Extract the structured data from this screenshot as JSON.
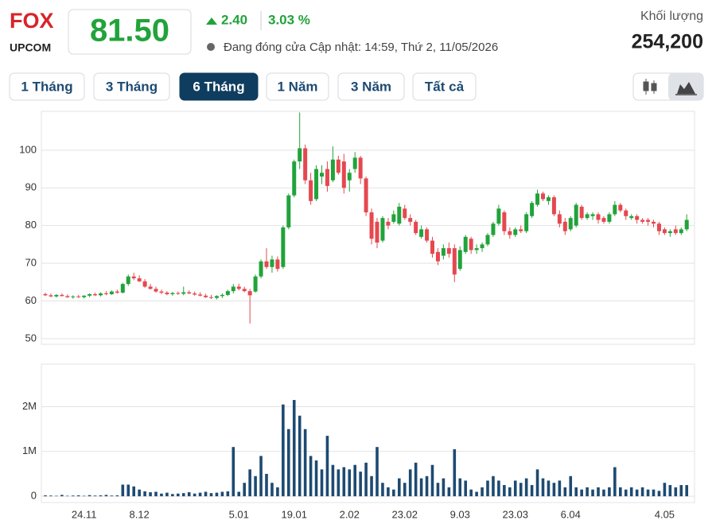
{
  "header": {
    "symbol": "FOX",
    "exchange": "UPCOM",
    "price": "81.50",
    "change": "2.40",
    "change_percent": "3.03 %",
    "status": "Đang đóng cửa",
    "updated": "Cập nhật: 14:59, Thứ 2, 11/05/2026",
    "volume_label": "Khối lượng",
    "volume": "254,200"
  },
  "tabs": [
    "1 Tháng",
    "3 Tháng",
    "6 Tháng",
    "1 Năm",
    "3 Năm",
    "Tất cả"
  ],
  "chart_data": [
    {
      "type": "candlestick",
      "up_color": "#21a33a",
      "down_color": "#e5484f",
      "grid": true,
      "ylim": [
        48.5,
        110.3
      ],
      "yticks": [
        50,
        60,
        70,
        80,
        90,
        100
      ],
      "open": [
        61.8,
        61.5,
        61.2,
        61.6,
        61.3,
        61,
        61.2,
        61,
        61.4,
        61.8,
        61.5,
        62,
        61.8,
        62.5,
        62.2,
        64.5,
        66.5,
        66,
        65.2,
        63.8,
        63.2,
        62.5,
        62.2,
        61.8,
        62.1,
        61.9,
        62.3,
        62,
        61.7,
        61.4,
        61,
        60.8,
        61.3,
        61.6,
        62.6,
        63.8,
        63.2,
        62.6,
        62.5,
        66.5,
        70.5,
        69,
        71,
        69,
        79.5,
        88,
        97,
        100.5,
        92,
        87,
        93,
        95,
        92,
        97.5,
        97,
        92,
        95,
        98,
        92.5,
        83.5,
        81,
        76,
        81,
        81,
        80.5,
        84.5,
        82,
        81,
        77,
        79,
        76,
        73,
        72,
        74,
        74,
        68.5,
        73,
        76.5,
        73.5,
        74,
        75,
        77.5,
        80.5,
        83.5,
        78.5,
        77.5,
        79,
        78.5,
        82.5,
        85.5,
        88.5,
        86.5,
        87.5,
        83,
        81,
        79,
        80,
        85,
        82,
        82.5,
        83,
        82,
        81,
        83,
        85.5,
        84,
        82,
        82.5,
        81.5,
        81.5,
        81,
        80.5,
        79,
        78,
        79,
        78,
        79
      ],
      "high": [
        62.2,
        62,
        61.8,
        62,
        61.7,
        61.5,
        61.6,
        61.5,
        62,
        62.2,
        62.3,
        62.6,
        62.8,
        63,
        64.8,
        67,
        67.5,
        66.8,
        65.8,
        64.5,
        63.8,
        63,
        62.6,
        62.4,
        62.5,
        63.8,
        62.8,
        62.5,
        62.3,
        61.9,
        61.6,
        61.5,
        62,
        63,
        64.5,
        64.6,
        63.8,
        63.2,
        67,
        71,
        74,
        72,
        71.8,
        80,
        88.5,
        97.5,
        110,
        101.5,
        94,
        96,
        96,
        97,
        101,
        98.5,
        99,
        95,
        99.5,
        98.5,
        93,
        84.5,
        82,
        82.5,
        82,
        84,
        86,
        85.5,
        83,
        81.5,
        80,
        79.5,
        77,
        74,
        75,
        75.5,
        75,
        74.5,
        77.5,
        77,
        75,
        75.5,
        78,
        81,
        85.5,
        84,
        79.5,
        79.5,
        80,
        83.5,
        86.5,
        89.5,
        89,
        88,
        88,
        84,
        82,
        82.5,
        86,
        85.5,
        83.5,
        83.5,
        83.5,
        82.5,
        83.5,
        86.5,
        86,
        84.5,
        83,
        83,
        82,
        82,
        81.5,
        81,
        79.5,
        79,
        80,
        79.5,
        83
      ],
      "low": [
        61.3,
        61,
        60.9,
        61.2,
        60.8,
        60.6,
        60.8,
        60.7,
        61,
        61.3,
        61.2,
        61.5,
        61.6,
        61.9,
        62,
        64,
        65.5,
        65,
        63.5,
        63,
        62.2,
        61.8,
        61.5,
        61.4,
        61.6,
        61.5,
        61.8,
        61.4,
        61.2,
        60.8,
        60.5,
        60.4,
        60.8,
        61.3,
        62,
        62.8,
        62.3,
        54,
        62.2,
        66,
        68.5,
        67.5,
        67.8,
        68.5,
        79,
        87.5,
        95,
        91,
        85.5,
        86.5,
        91,
        89,
        91.5,
        93.5,
        88.5,
        89,
        94,
        91,
        82.5,
        75,
        74,
        75.5,
        79,
        80.5,
        80,
        81.5,
        80,
        77.5,
        76.5,
        75.5,
        71.5,
        69.5,
        71,
        71.5,
        65,
        68,
        72.5,
        72.5,
        72.5,
        73,
        74.5,
        77,
        80,
        77.5,
        76.5,
        77,
        78,
        78,
        82,
        85,
        86.5,
        85.5,
        82.5,
        79.5,
        77.5,
        78.5,
        79.5,
        81.5,
        81.5,
        81.5,
        80.5,
        80.5,
        80.5,
        82.5,
        83.5,
        81.5,
        81.5,
        80.5,
        80.5,
        80,
        79.5,
        77.5,
        77.5,
        77,
        77.5,
        77.5,
        78.5
      ],
      "close": [
        61.5,
        61.2,
        61.6,
        61.3,
        61,
        61.2,
        61,
        61.4,
        61.8,
        61.5,
        62,
        61.8,
        62.5,
        62.2,
        64.5,
        66.5,
        66,
        65.2,
        63.8,
        63.2,
        62.5,
        62.2,
        61.8,
        62.1,
        61.9,
        62.3,
        62,
        61.7,
        61.4,
        61,
        60.8,
        61.3,
        61.6,
        62.6,
        63.8,
        63.2,
        62.6,
        61.5,
        66.5,
        70.5,
        69,
        71,
        68.5,
        79.5,
        88,
        97,
        100.5,
        92,
        86.5,
        95,
        94,
        90.5,
        97.5,
        94,
        90,
        94,
        98,
        92.5,
        83.5,
        76.5,
        75.5,
        82,
        80,
        83,
        85,
        82,
        81,
        78,
        79,
        76,
        72.5,
        70.5,
        74,
        72.5,
        67,
        73.5,
        77,
        73.5,
        74,
        75,
        77.5,
        80.5,
        84.5,
        78.5,
        77.5,
        79,
        78.5,
        83,
        86,
        88.5,
        87,
        87.5,
        83,
        80.5,
        78.5,
        82,
        85.5,
        82,
        83,
        83,
        81.5,
        81,
        83,
        85.5,
        84,
        82.5,
        82.5,
        81.5,
        81,
        81,
        80.5,
        78.5,
        78,
        78.5,
        78,
        79,
        81.5
      ]
    },
    {
      "type": "bar",
      "color": "#1d4a72",
      "grid": true,
      "ylim": [
        -140000,
        2950000
      ],
      "yticks": [
        {
          "value": 0,
          "label": "0"
        },
        {
          "value": 1000000,
          "label": "1M"
        },
        {
          "value": 2000000,
          "label": "2M"
        }
      ],
      "categories": [
        null,
        null,
        null,
        null,
        null,
        null,
        null,
        "24.11",
        null,
        null,
        null,
        null,
        null,
        null,
        null,
        null,
        null,
        "8.12",
        null,
        null,
        null,
        null,
        null,
        null,
        null,
        null,
        null,
        null,
        null,
        null,
        null,
        null,
        null,
        null,
        null,
        "5.01",
        null,
        null,
        null,
        null,
        null,
        null,
        null,
        null,
        null,
        "19.01",
        null,
        null,
        null,
        null,
        null,
        null,
        null,
        null,
        null,
        "2.02",
        null,
        null,
        null,
        null,
        null,
        null,
        null,
        null,
        null,
        "23.02",
        null,
        null,
        null,
        null,
        null,
        null,
        null,
        null,
        null,
        "9.03",
        null,
        null,
        null,
        null,
        null,
        null,
        null,
        null,
        null,
        "23.03",
        null,
        null,
        null,
        null,
        null,
        null,
        null,
        null,
        null,
        "6.04",
        null,
        null,
        null,
        null,
        null,
        null,
        null,
        null,
        null,
        null,
        null,
        null,
        null,
        null,
        null,
        null,
        "4.05",
        null,
        null,
        null,
        null
      ],
      "values": [
        20000,
        15000,
        10000,
        30000,
        10000,
        15000,
        20000,
        10000,
        25000,
        15000,
        20000,
        30000,
        15000,
        20000,
        260000,
        260000,
        220000,
        150000,
        110000,
        90000,
        100000,
        60000,
        80000,
        50000,
        60000,
        70000,
        90000,
        60000,
        80000,
        100000,
        70000,
        80000,
        100000,
        110000,
        1100000,
        100000,
        300000,
        600000,
        450000,
        900000,
        500000,
        300000,
        200000,
        2050000,
        1500000,
        2150000,
        1800000,
        1500000,
        900000,
        800000,
        600000,
        1350000,
        700000,
        600000,
        650000,
        600000,
        700000,
        550000,
        750000,
        450000,
        1100000,
        300000,
        200000,
        150000,
        400000,
        300000,
        600000,
        750000,
        400000,
        450000,
        700000,
        300000,
        400000,
        200000,
        1050000,
        400000,
        350000,
        150000,
        100000,
        200000,
        350000,
        450000,
        350000,
        250000,
        200000,
        350000,
        300000,
        400000,
        250000,
        600000,
        400000,
        350000,
        300000,
        350000,
        200000,
        450000,
        200000,
        150000,
        200000,
        150000,
        200000,
        150000,
        200000,
        650000,
        200000,
        150000,
        200000,
        150000,
        200000,
        150000,
        150000,
        120000,
        300000,
        250000,
        200000,
        250000,
        250000
      ]
    }
  ]
}
